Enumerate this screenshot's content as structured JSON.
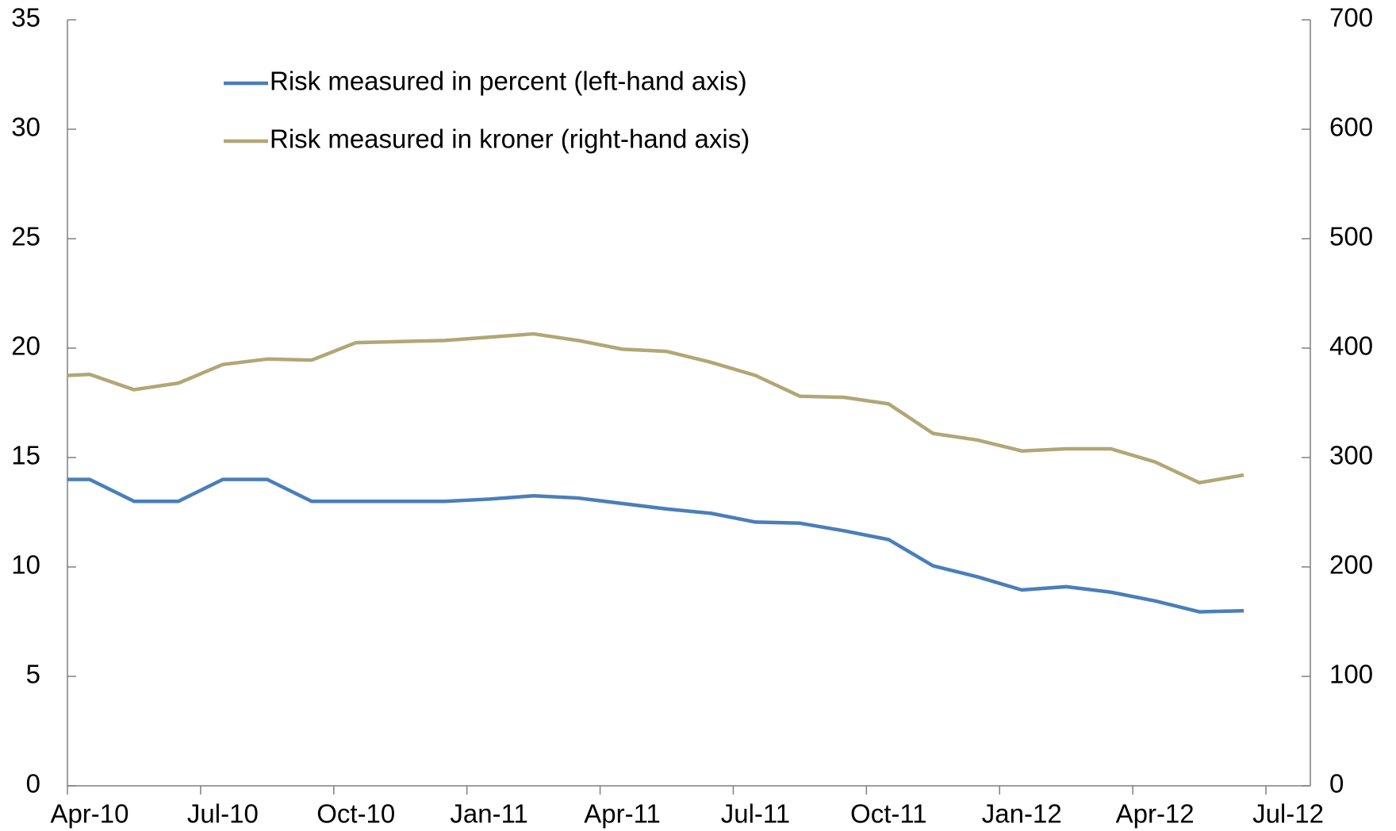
{
  "chart_data": {
    "type": "line",
    "x": [
      0,
      0.5,
      1.5,
      2.5,
      3.5,
      4.5,
      5.5,
      6.5,
      7.5,
      8.5,
      9.5,
      10.5,
      11.5,
      12.5,
      13.5,
      14.5,
      15.5,
      16.5,
      17.5,
      18.5,
      19.5,
      20.5,
      21.5,
      22.5,
      23.5,
      24.5,
      25.5,
      26.5
    ],
    "series": [
      {
        "name": "Risk measured in percent (left-hand axis)",
        "color": "#4a7ebb",
        "values": [
          14,
          14,
          13,
          13,
          14,
          14,
          13,
          13,
          13,
          13,
          13.1,
          13.25,
          13.15,
          12.9,
          12.65,
          12.45,
          12.05,
          12.0,
          11.65,
          11.25,
          10.05,
          9.55,
          8.95,
          9.1,
          8.85,
          8.45,
          7.95,
          8.0
        ]
      },
      {
        "name": "Risk measured in kroner (right-hand axis)",
        "color": "#b3a676",
        "axis": "y2",
        "values": [
          375,
          376,
          362,
          368,
          385,
          390,
          389,
          405,
          406,
          407,
          410,
          413,
          407,
          399,
          397,
          387,
          375,
          356,
          355,
          349,
          322,
          316,
          306,
          308,
          308,
          296,
          277,
          284
        ]
      }
    ],
    "xlim": [
      0,
      28
    ],
    "xticks": [
      {
        "value": 0,
        "label": "Apr-10"
      },
      {
        "value": 3,
        "label": "Jul-10"
      },
      {
        "value": 6,
        "label": "Oct-10"
      },
      {
        "value": 9,
        "label": "Jan-11"
      },
      {
        "value": 12,
        "label": "Apr-11"
      },
      {
        "value": 15,
        "label": "Jul-11"
      },
      {
        "value": 18,
        "label": "Oct-11"
      },
      {
        "value": 21,
        "label": "Jan-12"
      },
      {
        "value": 24,
        "label": "Apr-12"
      },
      {
        "value": 27,
        "label": "Jul-12"
      }
    ],
    "ylim": [
      0,
      35
    ],
    "yticks": [
      0,
      5,
      10,
      15,
      20,
      25,
      30,
      35
    ],
    "y2lim": [
      0,
      700
    ],
    "y2ticks": [
      0,
      100,
      200,
      300,
      400,
      500,
      600,
      700
    ],
    "legend": "upper left",
    "grid": false
  }
}
